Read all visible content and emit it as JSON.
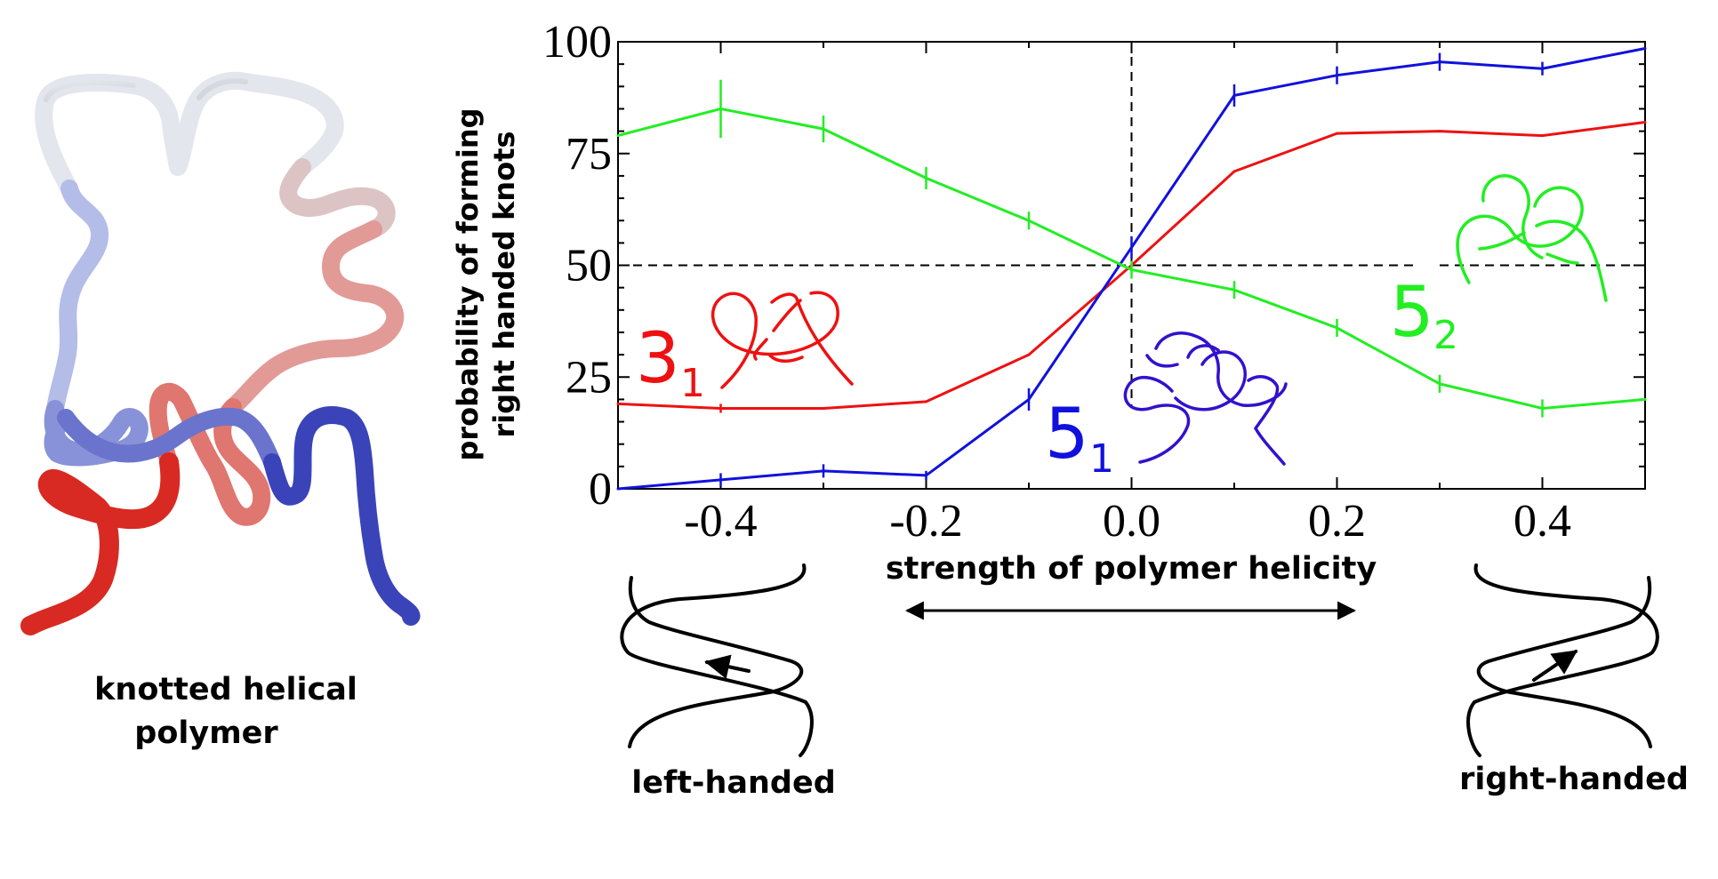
{
  "polymer_caption": [
    "knotted helical",
    "polymer"
  ],
  "left_helix_label": "left-handed",
  "right_helix_label": "right-handed",
  "colors": {
    "red": "#ee1111",
    "blue": "#1111dd",
    "green": "#22ee22",
    "knot_blue": "#3311cc"
  },
  "chart_data": {
    "type": "line",
    "xlabel": "strength of polymer helicity",
    "ylabel": [
      "probability of forming",
      "right handed knots"
    ],
    "xlim": [
      -0.5,
      0.5
    ],
    "ylim": [
      0,
      100
    ],
    "x_ticks": [
      -0.4,
      -0.2,
      0.0,
      0.2,
      0.4
    ],
    "x_tick_labels": [
      "-0.4",
      "-0.2",
      "0.0",
      "0.2",
      "0.4"
    ],
    "y_ticks": [
      0,
      25,
      50,
      75,
      100
    ],
    "y_tick_labels": [
      "0",
      "25",
      "50",
      "75",
      "100"
    ],
    "reference_lines": {
      "x": 0.0,
      "y": 50
    },
    "x": [
      -0.5,
      -0.4,
      -0.3,
      -0.2,
      -0.1,
      0.0,
      0.1,
      0.2,
      0.3,
      0.4,
      0.5
    ],
    "series": [
      {
        "knot": "3",
        "subscript": "1",
        "color": "#ee1111",
        "values": [
          19,
          18,
          18,
          19.5,
          30,
          50,
          71,
          79.5,
          80,
          79,
          82
        ],
        "errors": [
          0,
          1,
          0,
          0,
          0,
          0,
          0,
          0,
          0,
          0,
          0
        ]
      },
      {
        "knot": "5",
        "subscript": "1",
        "color": "#1111dd",
        "values": [
          0,
          2,
          4,
          3,
          20,
          54,
          88,
          92.5,
          95.5,
          94,
          98.5
        ],
        "errors": [
          0,
          1.5,
          1.5,
          1,
          2.5,
          2.5,
          2.5,
          2,
          2,
          1.5,
          0
        ]
      },
      {
        "knot": "5",
        "subscript": "2",
        "color": "#22ee22",
        "values": [
          79,
          85,
          80.5,
          69.5,
          60,
          49,
          44.5,
          36,
          23.5,
          18,
          20
        ],
        "errors": [
          0,
          6.5,
          3,
          2.5,
          2,
          2,
          2,
          2,
          2,
          2,
          0
        ]
      }
    ]
  }
}
